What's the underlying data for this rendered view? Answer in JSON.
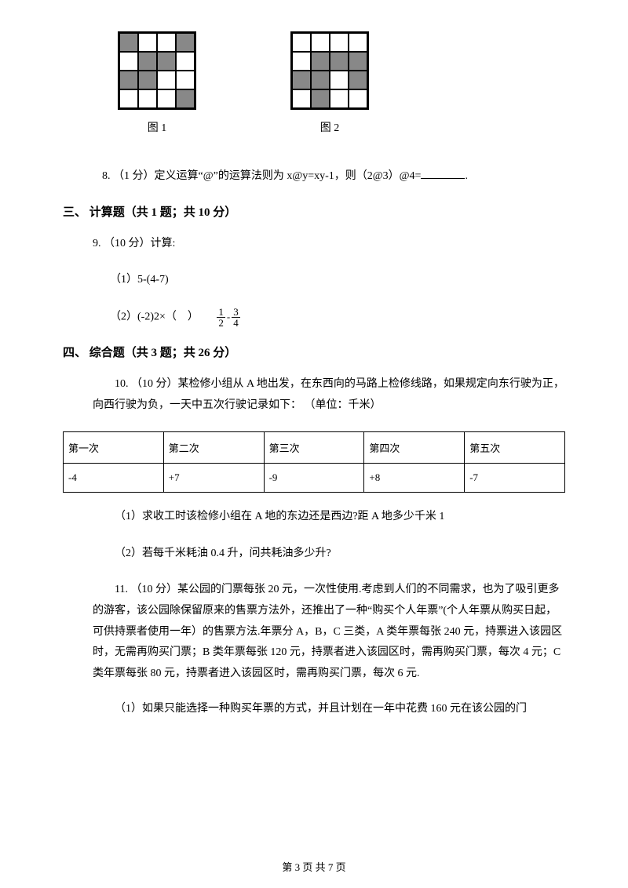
{
  "grids": {
    "fig1": {
      "label": "图 1",
      "cells": [
        [
          1,
          0,
          0,
          1
        ],
        [
          0,
          1,
          1,
          0
        ],
        [
          1,
          1,
          0,
          0
        ],
        [
          0,
          0,
          0,
          1
        ]
      ],
      "fill_color": "#888888",
      "border_color": "#000000",
      "cell_size": 24
    },
    "fig2": {
      "label": "图 2",
      "cells": [
        [
          0,
          0,
          0,
          0
        ],
        [
          0,
          1,
          1,
          1
        ],
        [
          1,
          1,
          0,
          1
        ],
        [
          0,
          1,
          0,
          0
        ]
      ],
      "fill_color": "#888888",
      "border_color": "#000000",
      "cell_size": 24
    }
  },
  "q8": {
    "text": "8. （1 分）定义运算“@”的运算法则为 x@y=xy-1，则（2@3）@4=",
    "after": "."
  },
  "section3": {
    "title": "三、 计算题（共 1 题；共 10 分）",
    "q9_intro": "9. （10 分）计算:",
    "q9_part1": "（1）5-(4-7)",
    "q9_part2_prefix": "（2）(-2)2×（　）",
    "frac": {
      "n1": "1",
      "d1": "2",
      "op": "-",
      "n2": "3",
      "d2": "4"
    }
  },
  "section4": {
    "title": "四、 综合题（共 3 题；共 26 分）",
    "q10_intro": "10. （10 分）某检修小组从 A 地出发，在东西向的马路上检修线路，如果规定向东行驶为正，向西行驶为负，一天中五次行驶记录如下： （单位：千米）",
    "table": {
      "headers": [
        "第一次",
        "第二次",
        "第三次",
        "第四次",
        "第五次"
      ],
      "row": [
        "-4",
        "+7",
        "-9",
        "+8",
        "-7"
      ]
    },
    "q10_part1": "（1）求收工时该检修小组在 A 地的东边还是西边?距 A 地多少千米 1",
    "q10_part2": "（2）若每千米耗油 0.4 升，问共耗油多少升?",
    "q11_intro": "11. （10 分）某公园的门票每张 20 元，一次性使用.考虑到人们的不同需求，也为了吸引更多的游客，该公园除保留原来的售票方法外，还推出了一种“购买个人年票”(个人年票从购买日起，可供持票者使用一年）的售票方法.年票分 A，B，C 三类，A 类年票每张 240 元，持票进入该园区时，无需再购买门票；B 类年票每张 120 元，持票者进入该园区时，需再购买门票，每次 4 元；C 类年票每张 80 元，持票者进入该园区时，需再购买门票，每次 6 元.",
    "q11_part1": "（1）如果只能选择一种购买年票的方式，并且计划在一年中花费 160 元在该公园的门"
  },
  "footer": "第 3 页 共 7 页"
}
